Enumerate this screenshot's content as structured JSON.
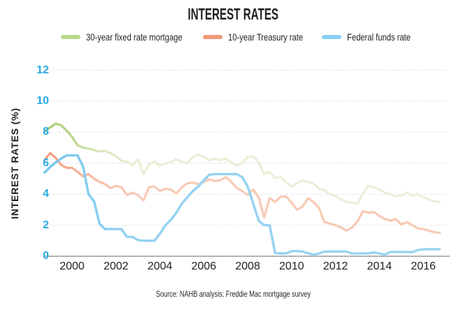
{
  "title": "INTEREST RATES",
  "source": "Source: NAHB analysis; Freddie Mac mortgage survey",
  "colors": {
    "text": "#231f20",
    "axis_tick_labels": "#29abe2",
    "gridline": "#cfcfcf",
    "zero_line": "#b3b3b3",
    "background": "#ffffff"
  },
  "legend": {
    "items": [
      {
        "id": "mortgage30",
        "label": "30-year fixed rate mortgage",
        "color": "#b9d789"
      },
      {
        "id": "treasury10",
        "label": "10-year Treasury rate",
        "color": "#f09a7c"
      },
      {
        "id": "fedfunds",
        "label": "Federal funds rate",
        "color": "#8bd0f2"
      }
    ]
  },
  "y_axis": {
    "title": "INTEREST RATES (%)",
    "ticks": [
      0,
      2,
      4,
      6,
      8,
      10,
      12
    ]
  },
  "x_axis": {
    "ticks": [
      2000,
      2002,
      2004,
      2006,
      2008,
      2010,
      2012,
      2014,
      2016
    ]
  },
  "chart_data": {
    "type": "line",
    "title": "INTEREST RATES",
    "ylabel": "INTEREST RATES (%)",
    "ylim": [
      0,
      12
    ],
    "xlim": [
      1998.7,
      2016.9
    ],
    "grid": "dotted horizontal gridlines at every 2 units, solid baseline at 0",
    "legend_position": "top",
    "x": [
      1998.75,
      1999,
      1999.25,
      1999.5,
      1999.75,
      2000,
      2000.25,
      2000.5,
      2000.75,
      2001,
      2001.25,
      2001.5,
      2001.75,
      2002,
      2002.25,
      2002.5,
      2002.75,
      2003,
      2003.25,
      2003.5,
      2003.75,
      2004,
      2004.25,
      2004.5,
      2004.75,
      2005,
      2005.25,
      2005.5,
      2005.75,
      2006,
      2006.25,
      2006.5,
      2006.75,
      2007,
      2007.25,
      2007.5,
      2007.75,
      2008,
      2008.25,
      2008.5,
      2008.75,
      2009,
      2009.25,
      2009.5,
      2009.75,
      2010,
      2010.25,
      2010.5,
      2010.75,
      2011,
      2011.25,
      2011.5,
      2011.75,
      2012,
      2012.25,
      2012.5,
      2012.75,
      2013,
      2013.25,
      2013.5,
      2013.75,
      2014,
      2014.25,
      2014.5,
      2014.75,
      2015,
      2015.25,
      2015.5,
      2015.75,
      2016,
      2016.25,
      2016.5,
      2016.75
    ],
    "series": [
      {
        "id": "mortgage30",
        "name": "30-year fixed rate mortgage",
        "stroke_width": 3.2,
        "gradient": [
          [
            0,
            "#a6cc70"
          ],
          [
            0.06,
            "#b5d383"
          ],
          [
            0.13,
            "#d7e6b5"
          ],
          [
            0.22,
            "#e8efd6"
          ],
          [
            1,
            "#e9f0d9"
          ]
        ],
        "values": [
          8.05,
          8.3,
          8.55,
          8.45,
          8.1,
          7.7,
          7.15,
          7,
          6.95,
          6.85,
          6.75,
          6.8,
          6.65,
          6.45,
          6.15,
          6.1,
          5.85,
          6.25,
          5.3,
          5.9,
          6.1,
          5.85,
          6,
          6.05,
          6.25,
          6.1,
          6,
          6.4,
          6.55,
          6.4,
          6.2,
          6.3,
          6.2,
          6.3,
          6.05,
          5.85,
          6,
          6.4,
          6.45,
          6.05,
          5.3,
          5.45,
          5.05,
          5.1,
          4.75,
          4.5,
          4.7,
          4.9,
          4.8,
          4.7,
          4.35,
          4.25,
          4,
          3.9,
          3.65,
          3.5,
          3.45,
          3.4,
          4.05,
          4.55,
          4.45,
          4.3,
          4.1,
          4,
          3.85,
          3.9,
          4.1,
          3.9,
          4,
          3.8,
          3.65,
          3.55,
          3.5
        ]
      },
      {
        "id": "treasury10",
        "name": "10-year Treasury rate",
        "stroke_width": 3.2,
        "gradient": [
          [
            0,
            "#f0997a"
          ],
          [
            0.06,
            "#f4ab8d"
          ],
          [
            0.14,
            "#f7bfa6"
          ],
          [
            0.22,
            "#f8cab6"
          ],
          [
            1,
            "#f8c9b4"
          ]
        ],
        "values": [
          6.2,
          6.65,
          6.35,
          5.9,
          5.7,
          5.7,
          5.45,
          5.15,
          5.3,
          5,
          4.8,
          4.65,
          4.4,
          4.55,
          4.45,
          3.95,
          4.1,
          3.95,
          3.6,
          4.45,
          4.5,
          4.2,
          4.35,
          4.3,
          4.05,
          4.45,
          4.7,
          4.75,
          4.65,
          4.8,
          4.95,
          4.85,
          4.9,
          5.1,
          4.8,
          4.4,
          4.2,
          3.95,
          4.3,
          3.8,
          2.5,
          3.75,
          3.5,
          3.85,
          3.85,
          3.45,
          3,
          3.2,
          3.75,
          3.5,
          3.1,
          2.2,
          2.1,
          2,
          1.85,
          1.65,
          1.85,
          2.25,
          2.9,
          2.8,
          2.85,
          2.6,
          2.4,
          2.3,
          2.4,
          2.05,
          2.2,
          2,
          1.8,
          1.75,
          1.65,
          1.55,
          1.5
        ]
      },
      {
        "id": "fedfunds",
        "name": "Federal funds rate",
        "stroke_width": 3.4,
        "gradient": [
          [
            0,
            "#74c7ef"
          ],
          [
            0.1,
            "#82ccf0"
          ],
          [
            0.22,
            "#92d1f1"
          ],
          [
            1,
            "#9cd5f2"
          ]
        ],
        "values": [
          5.4,
          5.75,
          6.05,
          6.3,
          6.5,
          6.5,
          6.5,
          5.8,
          4,
          3.55,
          2.1,
          1.75,
          1.75,
          1.75,
          1.75,
          1.25,
          1.25,
          1.05,
          1,
          1,
          1,
          1.45,
          2,
          2.35,
          2.8,
          3.4,
          3.8,
          4.2,
          4.5,
          4.9,
          5.25,
          5.3,
          5.3,
          5.3,
          5.3,
          5.3,
          5.1,
          4.5,
          3.4,
          2.3,
          2,
          2,
          0.2,
          0.18,
          0.18,
          0.33,
          0.33,
          0.3,
          0.19,
          0.1,
          0.18,
          0.3,
          0.3,
          0.3,
          0.3,
          0.3,
          0.17,
          0.18,
          0.18,
          0.18,
          0.25,
          0.18,
          0.1,
          0.28,
          0.28,
          0.28,
          0.27,
          0.27,
          0.4,
          0.45,
          0.45,
          0.45,
          0.45
        ]
      }
    ]
  }
}
